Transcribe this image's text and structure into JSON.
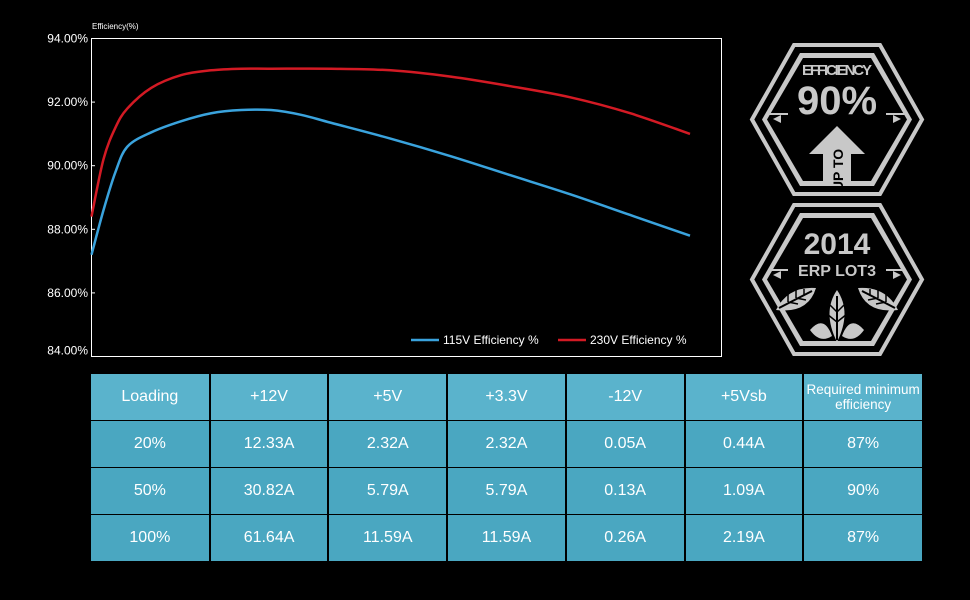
{
  "chart_data": {
    "type": "line",
    "ylabel": "Efficiency(%)",
    "xlabel": "",
    "ylim": [
      84,
      94
    ],
    "xlim": [
      0,
      100
    ],
    "yticks": [
      "84.00%",
      "86.00%",
      "88.00%",
      "90.00%",
      "92.00%",
      "94.00%"
    ],
    "ytick_values": [
      84,
      86,
      88,
      90,
      92,
      94
    ],
    "legend_position": "bottom-right",
    "series": [
      {
        "name": "115V Efficiency %",
        "color": "#3aa3dd",
        "x": [
          0,
          2,
          4,
          6,
          10,
          15,
          20,
          25,
          30,
          35,
          40,
          50,
          60,
          70,
          80,
          90,
          100
        ],
        "y": [
          87.2,
          88.6,
          89.8,
          90.6,
          91.05,
          91.4,
          91.65,
          91.75,
          91.75,
          91.6,
          91.35,
          90.85,
          90.3,
          89.7,
          89.1,
          88.45,
          87.8
        ]
      },
      {
        "name": "230V Efficiency %",
        "color": "#d31a24",
        "x": [
          0,
          2,
          4,
          6,
          10,
          15,
          20,
          25,
          30,
          40,
          50,
          60,
          70,
          80,
          90,
          100
        ],
        "y": [
          88.4,
          90.2,
          91.2,
          91.8,
          92.45,
          92.85,
          93.0,
          93.05,
          93.05,
          93.05,
          93.0,
          92.8,
          92.5,
          92.15,
          91.65,
          91.0
        ]
      }
    ]
  },
  "badges": {
    "efficiency": {
      "title": "EFFICIENCY",
      "value": "90%",
      "arrow_text": "UP TO"
    },
    "erp": {
      "year": "2014",
      "text": "ERP LOT3"
    }
  },
  "table": {
    "headers": [
      "Loading",
      "+12V",
      "+5V",
      "+3.3V",
      "-12V",
      "+5Vsb",
      "Required minimum efficiency"
    ],
    "rows": [
      [
        "20%",
        "12.33A",
        "2.32A",
        "2.32A",
        "0.05A",
        "0.44A",
        "87%"
      ],
      [
        "50%",
        "30.82A",
        "5.79A",
        "5.79A",
        "0.13A",
        "1.09A",
        "90%"
      ],
      [
        "100%",
        "61.64A",
        "11.59A",
        "11.59A",
        "0.26A",
        "2.19A",
        "87%"
      ]
    ]
  },
  "colors": {
    "header_bg": "#5ab3cc",
    "cell_bg": "#4aa7c1",
    "badge_gray": "#c8c8c8"
  }
}
